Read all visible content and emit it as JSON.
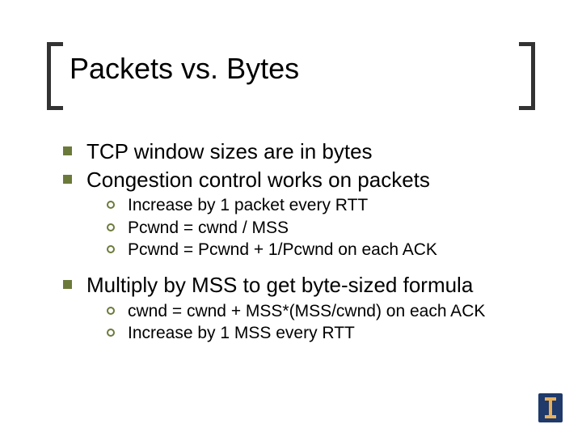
{
  "title": "Packets vs. Bytes",
  "colors": {
    "bracket": "#333333",
    "bullet_l1": "#6b7a3a",
    "bullet_l2_border": "#6b7a3a",
    "text": "#000000",
    "background": "#ffffff",
    "logo_bg": "#1f3a6b",
    "logo_fg": "#e8b05a"
  },
  "typography": {
    "title_fontsize": 36,
    "l1_fontsize": 26,
    "l2_fontsize": 21,
    "font_family": "Arial"
  },
  "bullets": {
    "b1": "TCP window sizes are in bytes",
    "b2": "Congestion control works on packets",
    "b2_1": "Increase by 1 packet every RTT",
    "b2_2": "Pcwnd = cwnd / MSS",
    "b2_3": "Pcwnd = Pcwnd + 1/Pcwnd on each ACK",
    "b3": "Multiply by MSS to get byte-sized formula",
    "b3_1": "cwnd = cwnd + MSS*(MSS/cwnd) on each ACK",
    "b3_2": "Increase by 1 MSS every RTT"
  },
  "logo": {
    "letter": "I",
    "institution_hint": "uiuc-logo"
  }
}
